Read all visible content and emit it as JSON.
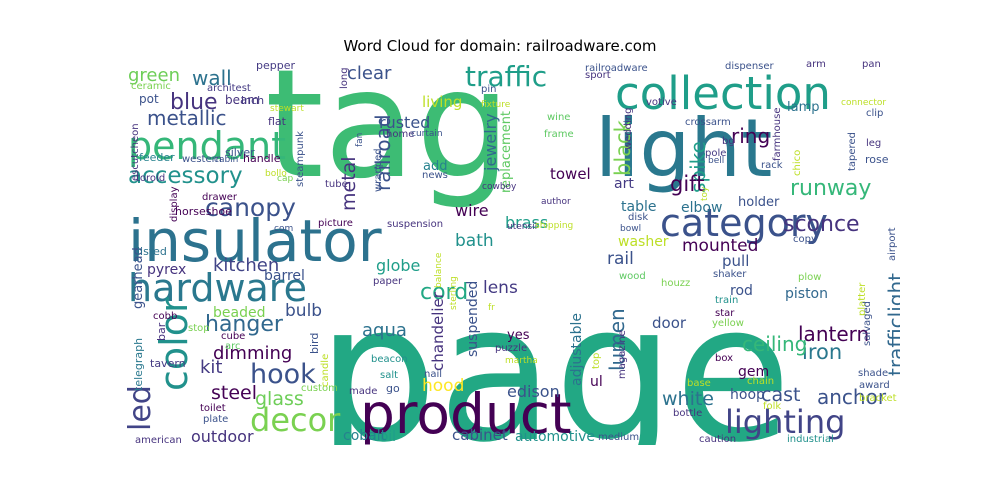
{
  "chart_data": {
    "type": "wordcloud",
    "title": "Word Cloud for domain: railroadware.com",
    "background": "#ffffff",
    "colormap": "viridis",
    "words": [
      {
        "text": "tag",
        "color": "#3dbc74"
      },
      {
        "text": "page",
        "color": "#22a884"
      },
      {
        "text": "light",
        "color": "#2a788e"
      },
      {
        "text": "insulator",
        "color": "#2c728e"
      },
      {
        "text": "product",
        "color": "#440154"
      },
      {
        "text": "collection",
        "color": "#1f9e89"
      },
      {
        "text": "hardware",
        "color": "#2a788e"
      },
      {
        "text": "category",
        "color": "#3b528b"
      },
      {
        "text": "pendant",
        "color": "#35b779"
      },
      {
        "text": "lighting",
        "color": "#414487"
      },
      {
        "text": "color",
        "color": "#21918c"
      },
      {
        "text": "decor",
        "color": "#7ad151"
      },
      {
        "text": "led",
        "color": "#414487"
      },
      {
        "text": "traffic",
        "color": "#1f9e89"
      },
      {
        "text": "canopy",
        "color": "#3b528b"
      },
      {
        "text": "accessory",
        "color": "#21918c"
      },
      {
        "text": "hook",
        "color": "#3b528b"
      },
      {
        "text": "hanger",
        "color": "#31688e"
      },
      {
        "text": "blue",
        "color": "#46337e"
      },
      {
        "text": "runway",
        "color": "#35b779"
      },
      {
        "text": "sconce",
        "color": "#46337e"
      },
      {
        "text": "trafficlight",
        "color": "#31688e"
      },
      {
        "text": "lantern",
        "color": "#440154"
      },
      {
        "text": "iron",
        "color": "#2a788e"
      },
      {
        "text": "anchor",
        "color": "#3b528b"
      },
      {
        "text": "ceiling",
        "color": "#35b779"
      },
      {
        "text": "spike",
        "color": "#1f9e89"
      },
      {
        "text": "gift",
        "color": "#440154"
      },
      {
        "text": "ring",
        "color": "#440154"
      },
      {
        "text": "black",
        "color": "#7ad151"
      },
      {
        "text": "lumen",
        "color": "#31688e"
      },
      {
        "text": "cord",
        "color": "#22a884"
      },
      {
        "text": "metallic",
        "color": "#3b528b"
      },
      {
        "text": "green",
        "color": "#6ece58"
      },
      {
        "text": "wall",
        "color": "#2c728e"
      },
      {
        "text": "clear",
        "color": "#3b528b"
      },
      {
        "text": "railroad",
        "color": "#3b528b"
      },
      {
        "text": "metal",
        "color": "#46337e"
      },
      {
        "text": "kitchen",
        "color": "#414487"
      },
      {
        "text": "dimming",
        "color": "#440154"
      },
      {
        "text": "kit",
        "color": "#443a83"
      },
      {
        "text": "steel",
        "color": "#440154"
      },
      {
        "text": "glass",
        "color": "#6ece58"
      },
      {
        "text": "outdoor",
        "color": "#46337e"
      },
      {
        "text": "bulb",
        "color": "#3b528b"
      },
      {
        "text": "aqua",
        "color": "#2c728e"
      },
      {
        "text": "lens",
        "color": "#443a83"
      },
      {
        "text": "bath",
        "color": "#21918c"
      },
      {
        "text": "wire",
        "color": "#440154"
      },
      {
        "text": "globe",
        "color": "#1f9e89"
      },
      {
        "text": "hood",
        "color": "#fde725"
      },
      {
        "text": "edison",
        "color": "#3b528b"
      },
      {
        "text": "cast",
        "color": "#3b528b"
      },
      {
        "text": "white",
        "color": "#2c728e"
      },
      {
        "text": "mounted",
        "color": "#440154"
      },
      {
        "text": "rail",
        "color": "#3b528b"
      },
      {
        "text": "jewelry",
        "color": "#31688e"
      },
      {
        "text": "rusted",
        "color": "#3b528b"
      },
      {
        "text": "living",
        "color": "#bddf26"
      },
      {
        "text": "brass",
        "color": "#1f9e89"
      },
      {
        "text": "towel",
        "color": "#440154"
      },
      {
        "text": "chandelier",
        "color": "#46337e"
      },
      {
        "text": "suspended",
        "color": "#3b528b"
      },
      {
        "text": "adjustable",
        "color": "#2c728e"
      },
      {
        "text": "cabinet",
        "color": "#3b528b"
      },
      {
        "text": "automotive",
        "color": "#21918c"
      },
      {
        "text": "coil",
        "color": "#1f9e89"
      },
      {
        "text": "cobalt",
        "color": "#26828e"
      },
      {
        "text": "beaded",
        "color": "#7ad151"
      },
      {
        "text": "barrel",
        "color": "#3b528b"
      },
      {
        "text": "pyrex",
        "color": "#46337e"
      },
      {
        "text": "washer",
        "color": "#bddf26"
      },
      {
        "text": "table",
        "color": "#2c728e"
      },
      {
        "text": "pull",
        "color": "#3b528b"
      },
      {
        "text": "door",
        "color": "#3b528b"
      },
      {
        "text": "piston",
        "color": "#31688e"
      },
      {
        "text": "rod",
        "color": "#3b528b"
      },
      {
        "text": "gem",
        "color": "#440154"
      },
      {
        "text": "hoop",
        "color": "#3b528b"
      },
      {
        "text": "elbow",
        "color": "#2c728e"
      },
      {
        "text": "art",
        "color": "#443a83"
      },
      {
        "text": "holder",
        "color": "#3b528b"
      },
      {
        "text": "lamp",
        "color": "#2c728e"
      },
      {
        "text": "ul",
        "color": "#440154"
      },
      {
        "text": "yes",
        "color": "#440154"
      },
      {
        "text": "add",
        "color": "#26828e"
      },
      {
        "text": "replacement",
        "color": "#5ec962"
      },
      {
        "text": "pot",
        "color": "#3b528b"
      },
      {
        "text": "beam",
        "color": "#46337e"
      },
      {
        "text": "silver",
        "color": "#3b528b"
      },
      {
        "text": "handle",
        "color": "#440154"
      },
      {
        "text": "inch",
        "color": "#443a83"
      },
      {
        "text": "flat",
        "color": "#46337e"
      },
      {
        "text": "feeder",
        "color": "#26828e"
      },
      {
        "text": "western",
        "color": "#3b528b"
      },
      {
        "text": "cabin",
        "color": "#3b528b"
      },
      {
        "text": "pepper",
        "color": "#443a83"
      },
      {
        "text": "ceramic",
        "color": "#7ad151"
      },
      {
        "text": "architest",
        "color": "#443a83"
      },
      {
        "text": "escutcheon",
        "color": "#46337e"
      },
      {
        "text": "toroid",
        "color": "#46337e"
      },
      {
        "text": "drawer",
        "color": "#440154"
      },
      {
        "text": "horseshoe",
        "color": "#440154"
      },
      {
        "text": "gearhead",
        "color": "#3b528b"
      },
      {
        "text": "display",
        "color": "#440154"
      },
      {
        "text": "listed",
        "color": "#2c728e"
      },
      {
        "text": "telegraph",
        "color": "#2a788e"
      },
      {
        "text": "bar",
        "color": "#46337e"
      },
      {
        "text": "tavern",
        "color": "#443a83"
      },
      {
        "text": "toilet",
        "color": "#440154"
      },
      {
        "text": "plate",
        "color": "#3b528b"
      },
      {
        "text": "american",
        "color": "#46337e"
      },
      {
        "text": "cube",
        "color": "#440154"
      },
      {
        "text": "arc",
        "color": "#5ec962"
      },
      {
        "text": "stop",
        "color": "#7ad151"
      },
      {
        "text": "cobb",
        "color": "#440154"
      },
      {
        "text": "custom",
        "color": "#7ad151"
      },
      {
        "text": "bird",
        "color": "#3b528b"
      },
      {
        "text": "candle",
        "color": "#bddf26"
      },
      {
        "text": "made",
        "color": "#46337e"
      },
      {
        "text": "go",
        "color": "#3b528b"
      },
      {
        "text": "salt",
        "color": "#21918c"
      },
      {
        "text": "beacon",
        "color": "#21918c"
      },
      {
        "text": "nail",
        "color": "#3b528b"
      },
      {
        "text": "paper",
        "color": "#46337e"
      },
      {
        "text": "puzzle",
        "color": "#46337e"
      },
      {
        "text": "martha",
        "color": "#bddf26"
      },
      {
        "text": "picture",
        "color": "#440154"
      },
      {
        "text": "suspension",
        "color": "#46337e"
      },
      {
        "text": "steampunk",
        "color": "#3b528b"
      },
      {
        "text": "tube",
        "color": "#46337e"
      },
      {
        "text": "bollo",
        "color": "#bddf26"
      },
      {
        "text": "cap",
        "color": "#7ad151"
      },
      {
        "text": "com",
        "color": "#3b528b"
      },
      {
        "text": "long",
        "color": "#46337e"
      },
      {
        "text": "fan",
        "color": "#3b528b"
      },
      {
        "text": "wrapped",
        "color": "#3b528b"
      },
      {
        "text": "home",
        "color": "#46337e"
      },
      {
        "text": "curtain",
        "color": "#3b528b"
      },
      {
        "text": "news",
        "color": "#3b528b"
      },
      {
        "text": "cowboy",
        "color": "#46337e"
      },
      {
        "text": "pin",
        "color": "#3b528b"
      },
      {
        "text": "fixture",
        "color": "#bddf26"
      },
      {
        "text": "stewart",
        "color": "#bddf26"
      },
      {
        "text": "wine",
        "color": "#5ec962"
      },
      {
        "text": "frame",
        "color": "#5ec962"
      },
      {
        "text": "author",
        "color": "#46337e"
      },
      {
        "text": "utensil",
        "color": "#46337e"
      },
      {
        "text": "shipping",
        "color": "#bddf26"
      },
      {
        "text": "balance",
        "color": "#bddf26"
      },
      {
        "text": "sterling",
        "color": "#bddf26"
      },
      {
        "text": "fr",
        "color": "#bddf26"
      },
      {
        "text": "railroadware",
        "color": "#3b528b"
      },
      {
        "text": "sport",
        "color": "#46337e"
      },
      {
        "text": "votive",
        "color": "#46337e"
      },
      {
        "text": "crossarm",
        "color": "#3b528b"
      },
      {
        "text": "wedding",
        "color": "#46337e"
      },
      {
        "text": "bg",
        "color": "#46337e"
      },
      {
        "text": "pole",
        "color": "#443a83"
      },
      {
        "text": "bell",
        "color": "#3b528b"
      },
      {
        "text": "toy",
        "color": "#bddf26"
      },
      {
        "text": "disk",
        "color": "#3b528b"
      },
      {
        "text": "bowl",
        "color": "#3b528b"
      },
      {
        "text": "wood",
        "color": "#5ec962"
      },
      {
        "text": "houzz",
        "color": "#7ad151"
      },
      {
        "text": "train",
        "color": "#21918c"
      },
      {
        "text": "star",
        "color": "#440154"
      },
      {
        "text": "yellow",
        "color": "#7ad151"
      },
      {
        "text": "shaker",
        "color": "#3b528b"
      },
      {
        "text": "plow",
        "color": "#7ad151"
      },
      {
        "text": "copy",
        "color": "#3b528b"
      },
      {
        "text": "box",
        "color": "#440154"
      },
      {
        "text": "magazine",
        "color": "#46337e"
      },
      {
        "text": "chain",
        "color": "#bddf26"
      },
      {
        "text": "base",
        "color": "#bddf26"
      },
      {
        "text": "bottle",
        "color": "#46337e"
      },
      {
        "text": "folk",
        "color": "#bddf26"
      },
      {
        "text": "caution",
        "color": "#46337e"
      },
      {
        "text": "medium",
        "color": "#3b528b"
      },
      {
        "text": "industrial",
        "color": "#21918c"
      },
      {
        "text": "dispenser",
        "color": "#3b528b"
      },
      {
        "text": "arm",
        "color": "#46337e"
      },
      {
        "text": "pan",
        "color": "#46337e"
      },
      {
        "text": "connector",
        "color": "#bddf26"
      },
      {
        "text": "clip",
        "color": "#3b528b"
      },
      {
        "text": "leg",
        "color": "#46337e"
      },
      {
        "text": "rose",
        "color": "#3b528b"
      },
      {
        "text": "tapered",
        "color": "#3b528b"
      },
      {
        "text": "rack",
        "color": "#3b528b"
      },
      {
        "text": "chico",
        "color": "#bddf26"
      },
      {
        "text": "farmhouse",
        "color": "#46337e"
      },
      {
        "text": "airport",
        "color": "#3b528b"
      },
      {
        "text": "platter",
        "color": "#bddf26"
      },
      {
        "text": "salvaged",
        "color": "#3b528b"
      },
      {
        "text": "shade",
        "color": "#3b528b"
      },
      {
        "text": "award",
        "color": "#3b528b"
      },
      {
        "text": "bracket",
        "color": "#bddf26"
      },
      {
        "text": "top",
        "color": "#bddf26"
      }
    ]
  }
}
